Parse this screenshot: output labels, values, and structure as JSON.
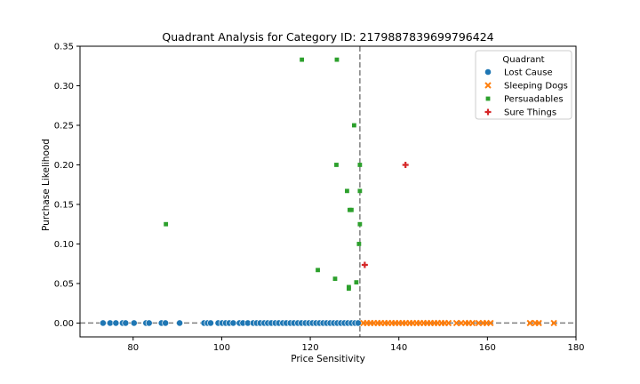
{
  "chart_data": {
    "type": "scatter",
    "title": "Quadrant Analysis for Category ID: 2179887839699796424",
    "xlabel": "Price Sensitivity",
    "ylabel": "Purchase Likelihood",
    "xlim": [
      68,
      180
    ],
    "ylim": [
      -0.0175,
      0.35
    ],
    "x_ticks": [
      80,
      100,
      120,
      140,
      160,
      180
    ],
    "y_ticks": [
      0.0,
      0.05,
      0.1,
      0.15,
      0.2,
      0.25,
      0.3,
      0.35
    ],
    "y_tick_labels": [
      "0.00",
      "0.05",
      "0.10",
      "0.15",
      "0.20",
      "0.25",
      "0.30",
      "0.35"
    ],
    "reference_lines": {
      "vertical_x": 131.2,
      "horizontal_y": 0.0
    },
    "legend": {
      "title": "Quadrant",
      "placement": "top-right"
    },
    "series": [
      {
        "name": "Lost Cause",
        "marker": "circle",
        "color": "#1f77b4",
        "points": [
          [
            73.2,
            0
          ],
          [
            74.8,
            0
          ],
          [
            76.1,
            0
          ],
          [
            77.6,
            0
          ],
          [
            78.3,
            0
          ],
          [
            80.2,
            0
          ],
          [
            82.9,
            0
          ],
          [
            83.6,
            0
          ],
          [
            86.4,
            0
          ],
          [
            87.3,
            0
          ],
          [
            90.5,
            0
          ],
          [
            96.0,
            0
          ],
          [
            96.8,
            0
          ],
          [
            97.5,
            0
          ],
          [
            99.2,
            0
          ],
          [
            100.1,
            0
          ],
          [
            100.9,
            0
          ],
          [
            101.7,
            0
          ],
          [
            102.6,
            0
          ],
          [
            104.0,
            0
          ],
          [
            104.8,
            0
          ],
          [
            105.9,
            0
          ],
          [
            107.1,
            0
          ],
          [
            107.9,
            0
          ],
          [
            108.7,
            0
          ],
          [
            109.6,
            0
          ],
          [
            110.4,
            0
          ],
          [
            111.2,
            0
          ],
          [
            112.1,
            0
          ],
          [
            112.9,
            0
          ],
          [
            113.8,
            0
          ],
          [
            114.6,
            0
          ],
          [
            115.5,
            0
          ],
          [
            116.3,
            0
          ],
          [
            117.2,
            0
          ],
          [
            118.0,
            0
          ],
          [
            118.9,
            0
          ],
          [
            119.7,
            0
          ],
          [
            120.5,
            0
          ],
          [
            121.3,
            0
          ],
          [
            122.1,
            0
          ],
          [
            122.9,
            0
          ],
          [
            123.7,
            0
          ],
          [
            124.5,
            0
          ],
          [
            125.3,
            0
          ],
          [
            126.1,
            0
          ],
          [
            126.9,
            0
          ],
          [
            127.7,
            0
          ],
          [
            128.5,
            0
          ],
          [
            129.3,
            0
          ],
          [
            130.1,
            0
          ],
          [
            130.8,
            0
          ]
        ]
      },
      {
        "name": "Sleeping Dogs",
        "marker": "x",
        "color": "#ff7f0e",
        "points": [
          [
            132.0,
            0
          ],
          [
            132.8,
            0
          ],
          [
            133.6,
            0
          ],
          [
            134.4,
            0
          ],
          [
            135.2,
            0
          ],
          [
            136.0,
            0
          ],
          [
            136.8,
            0
          ],
          [
            137.6,
            0
          ],
          [
            138.4,
            0
          ],
          [
            139.2,
            0
          ],
          [
            140.0,
            0
          ],
          [
            140.8,
            0
          ],
          [
            141.6,
            0
          ],
          [
            142.4,
            0
          ],
          [
            143.2,
            0
          ],
          [
            144.0,
            0
          ],
          [
            144.8,
            0
          ],
          [
            145.6,
            0
          ],
          [
            146.4,
            0
          ],
          [
            147.2,
            0
          ],
          [
            148.0,
            0
          ],
          [
            148.8,
            0
          ],
          [
            149.6,
            0
          ],
          [
            150.4,
            0
          ],
          [
            151.2,
            0
          ],
          [
            153.0,
            0
          ],
          [
            154.1,
            0
          ],
          [
            155.0,
            0
          ],
          [
            155.8,
            0
          ],
          [
            156.6,
            0
          ],
          [
            158.0,
            0
          ],
          [
            159.0,
            0
          ],
          [
            159.8,
            0
          ],
          [
            160.7,
            0
          ],
          [
            169.6,
            0
          ],
          [
            170.8,
            0
          ],
          [
            171.6,
            0
          ],
          [
            175.0,
            0
          ]
        ]
      },
      {
        "name": "Persuadables",
        "marker": "square",
        "color": "#2ca02c",
        "points": [
          [
            118.1,
            0.333
          ],
          [
            126.0,
            0.333
          ],
          [
            129.9,
            0.25
          ],
          [
            125.9,
            0.2
          ],
          [
            131.2,
            0.2
          ],
          [
            128.3,
            0.167
          ],
          [
            131.2,
            0.167
          ],
          [
            128.9,
            0.143
          ],
          [
            129.3,
            0.143
          ],
          [
            131.2,
            0.125
          ],
          [
            87.4,
            0.125
          ],
          [
            131.0,
            0.1
          ],
          [
            121.7,
            0.067
          ],
          [
            125.6,
            0.056
          ],
          [
            130.4,
            0.0515
          ],
          [
            128.7,
            0.0455
          ],
          [
            128.7,
            0.0435
          ]
        ]
      },
      {
        "name": "Sure Things",
        "marker": "plus",
        "color": "#d62728",
        "points": [
          [
            141.5,
            0.2
          ],
          [
            132.3,
            0.0735
          ]
        ]
      }
    ]
  }
}
